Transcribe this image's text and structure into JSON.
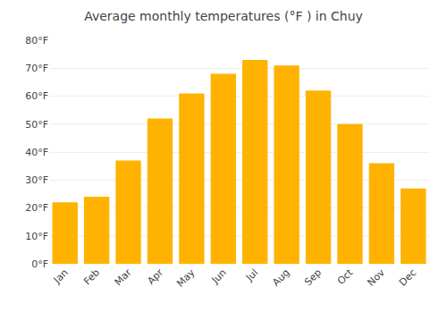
{
  "chart_data": {
    "type": "bar",
    "title": "Average monthly temperatures (°F ) in Chuy",
    "categories": [
      "Jan",
      "Feb",
      "Mar",
      "Apr",
      "May",
      "Jun",
      "Jul",
      "Aug",
      "Sep",
      "Oct",
      "Nov",
      "Dec"
    ],
    "values": [
      22,
      24,
      37,
      52,
      61,
      68,
      73,
      71,
      62,
      50,
      36,
      27
    ],
    "color": "#FFB300",
    "ylim": [
      0,
      80
    ],
    "yticks": [
      {
        "value": 0,
        "label": "0°F"
      },
      {
        "value": 10,
        "label": "10°F"
      },
      {
        "value": 20,
        "label": "20°F"
      },
      {
        "value": 30,
        "label": "30°F"
      },
      {
        "value": 40,
        "label": "40°F"
      },
      {
        "value": 50,
        "label": "50°F"
      },
      {
        "value": 60,
        "label": "60°F"
      },
      {
        "value": 70,
        "label": "70°F"
      },
      {
        "value": 80,
        "label": "80°F"
      }
    ],
    "grid": true
  }
}
